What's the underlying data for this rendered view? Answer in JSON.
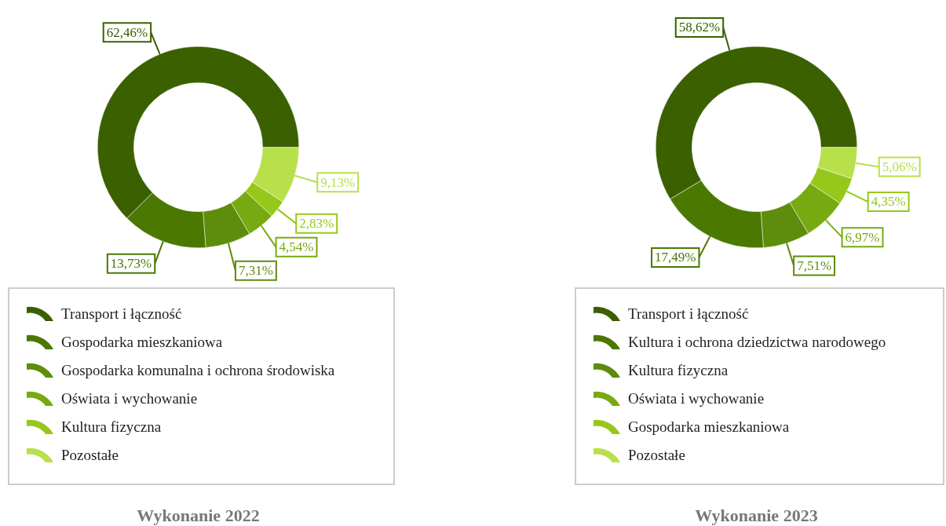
{
  "chart_data": [
    {
      "type": "donut",
      "title": "Wykonanie 2022",
      "legend": "bottom",
      "value_labels": [
        "62,46%",
        "13,73%",
        "7,31%",
        "4,54%",
        "2,83%",
        "9,13%"
      ],
      "categories": [
        "Transport i łączność",
        "Gospodarka mieszkaniowa",
        "Gospodarka komunalna i ochrona środowiska",
        "Oświata i wychowanie",
        "Kultura fizyczna",
        "Pozostałe"
      ],
      "values": [
        62.46,
        13.73,
        7.31,
        4.54,
        2.83,
        9.13
      ],
      "colors": [
        "#3a6000",
        "#4a7800",
        "#5e8c0c",
        "#77aa10",
        "#96c81c",
        "#b8e04a"
      ]
    },
    {
      "type": "donut",
      "title": "Wykonanie 2023",
      "legend": "bottom",
      "value_labels": [
        "58,62%",
        "17,49%",
        "7,51%",
        "6,97%",
        "4,35%",
        "5,06%"
      ],
      "categories": [
        "Transport i łączność",
        "Kultura i ochrona dziedzictwa narodowego",
        "Kultura fizyczna",
        "Oświata i wychowanie",
        "Gospodarka mieszkaniowa",
        "Pozostałe"
      ],
      "values": [
        58.62,
        17.49,
        7.51,
        6.97,
        4.35,
        5.06
      ],
      "colors": [
        "#3a6000",
        "#4a7800",
        "#5e8c0c",
        "#77aa10",
        "#96c81c",
        "#b8e04a"
      ]
    }
  ]
}
